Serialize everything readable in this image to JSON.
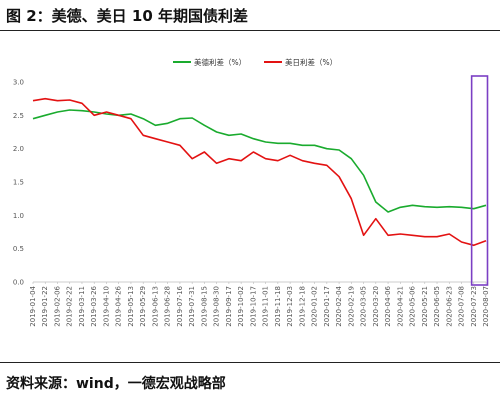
{
  "figure": {
    "title": "图 2：美德、美日 10 年期国债利差",
    "source": "资料来源：wind，一德宏观战略部"
  },
  "chart_data": {
    "type": "line",
    "ylim": [
      0.0,
      3.0
    ],
    "yticks": [
      "0.0",
      "0.5",
      "1.0",
      "1.5",
      "2.0",
      "2.5",
      "3.0"
    ],
    "grid": false,
    "legend_position": "top-center",
    "x_tick_labels": [
      "2019-01-04",
      "2019-01-22",
      "2019-02-06",
      "2019-02-22",
      "2019-03-11",
      "2019-03-26",
      "2019-04-10",
      "2019-04-26",
      "2019-05-13",
      "2019-05-29",
      "2019-06-13",
      "2019-06-28",
      "2019-07-16",
      "2019-07-31",
      "2019-08-15",
      "2019-08-30",
      "2019-09-17",
      "2019-10-02",
      "2019-10-17",
      "2019-11-01",
      "2019-11-18",
      "2019-12-03",
      "2019-12-18",
      "2020-01-02",
      "2020-01-17",
      "2020-02-04",
      "2020-02-19",
      "2020-03-05",
      "2020-03-20",
      "2020-04-06",
      "2020-04-21",
      "2020-05-06",
      "2020-05-21",
      "2020-06-05",
      "2020-06-23",
      "2020-07-08",
      "2020-07-23",
      "2020-08-07"
    ],
    "series": [
      {
        "name": "美德利差（%）",
        "color": "#1aab2e",
        "values": [
          2.45,
          2.5,
          2.55,
          2.58,
          2.57,
          2.55,
          2.52,
          2.5,
          2.52,
          2.45,
          2.35,
          2.38,
          2.45,
          2.46,
          2.35,
          2.25,
          2.2,
          2.22,
          2.15,
          2.1,
          2.08,
          2.08,
          2.05,
          2.05,
          2.0,
          1.98,
          1.85,
          1.6,
          1.2,
          1.05,
          1.12,
          1.15,
          1.13,
          1.12,
          1.13,
          1.12,
          1.1,
          1.15
        ]
      },
      {
        "name": "美日利差（%）",
        "color": "#e31212",
        "values": [
          2.72,
          2.75,
          2.72,
          2.73,
          2.68,
          2.5,
          2.55,
          2.5,
          2.45,
          2.2,
          2.15,
          2.1,
          2.05,
          1.85,
          1.95,
          1.78,
          1.85,
          1.82,
          1.95,
          1.85,
          1.82,
          1.9,
          1.82,
          1.78,
          1.75,
          1.58,
          1.25,
          0.7,
          0.95,
          0.7,
          0.72,
          0.7,
          0.68,
          0.68,
          0.72,
          0.6,
          0.55,
          0.62
        ]
      }
    ],
    "highlight_box": {
      "x_start_label": "2020-07-23",
      "x_end_label": "2020-08-07",
      "color": "#7b3fc4"
    }
  }
}
